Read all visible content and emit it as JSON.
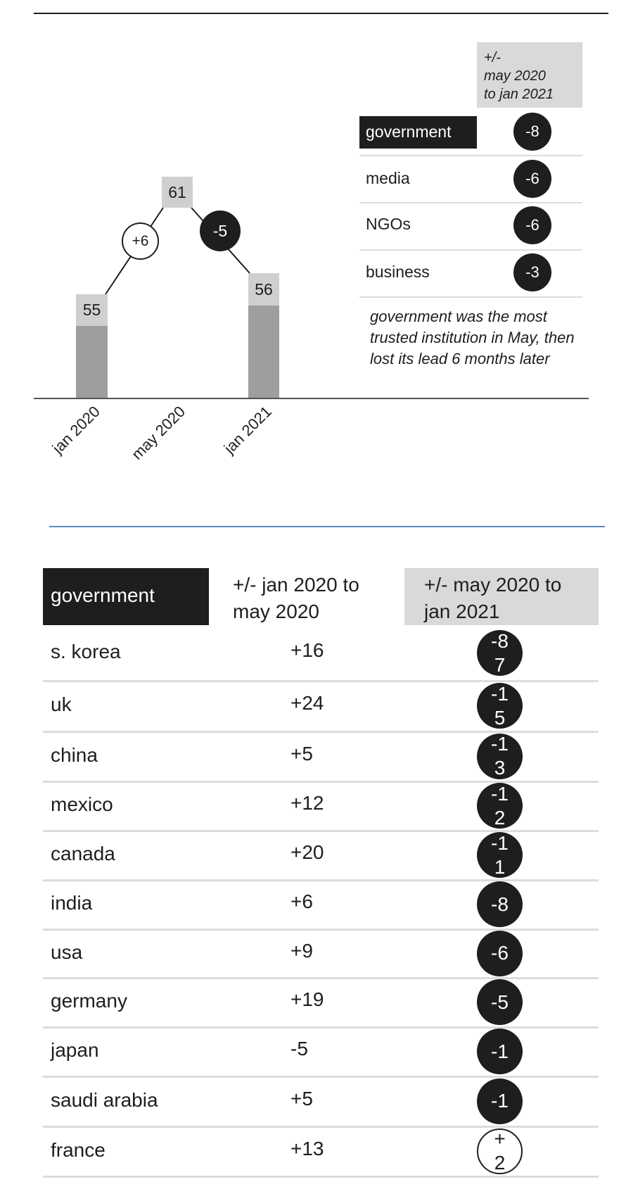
{
  "chart_data": {
    "type": "bar",
    "title": "",
    "categories": [
      "jan 2020",
      "may 2020",
      "jan 2021"
    ],
    "values": [
      55,
      61,
      56
    ],
    "shown_as_bar": [
      true,
      false,
      true
    ],
    "changes": [
      {
        "from": "jan 2020",
        "to": "may 2020",
        "label": "+6",
        "value": 6
      },
      {
        "from": "may 2020",
        "to": "jan 2021",
        "label": "-5",
        "value": -5
      }
    ],
    "value_labels": [
      "55",
      "61",
      "56"
    ],
    "ylim": [
      0,
      70
    ],
    "grid": false
  },
  "institutions": {
    "header": "+/-\nmay 2020\nto jan 2021",
    "header_lines": [
      "+/-",
      "may 2020",
      "to jan 2021"
    ],
    "rows": [
      {
        "name": "government",
        "change": "-8",
        "highlight": true
      },
      {
        "name": "media",
        "change": "-6"
      },
      {
        "name": "NGOs",
        "change": "-6"
      },
      {
        "name": "business",
        "change": "-3"
      }
    ],
    "note": "government was the most trusted institution in May, then lost its lead 6 months later"
  },
  "country_table": {
    "headers": [
      "government",
      "+/- jan 2020 to may 2020",
      "+/- may 2020 to jan 2021"
    ],
    "rows": [
      {
        "country": "s. korea",
        "jan_may": "+16",
        "may_jan": "-87"
      },
      {
        "country": "uk",
        "jan_may": "+24",
        "may_jan": "-15"
      },
      {
        "country": "china",
        "jan_may": "+5",
        "may_jan": "-13"
      },
      {
        "country": "mexico",
        "jan_may": "+12",
        "may_jan": "-12"
      },
      {
        "country": "canada",
        "jan_may": "+20",
        "may_jan": "-11"
      },
      {
        "country": "india",
        "jan_may": "+6",
        "may_jan": "-8"
      },
      {
        "country": "usa",
        "jan_may": "+9",
        "may_jan": "-6"
      },
      {
        "country": "germany",
        "jan_may": "+19",
        "may_jan": "-5"
      },
      {
        "country": "japan",
        "jan_may": "-5",
        "may_jan": "-1"
      },
      {
        "country": "saudi arabia",
        "jan_may": "+5",
        "may_jan": "-1"
      },
      {
        "country": "france",
        "jan_may": "+13",
        "may_jan": "+2"
      }
    ]
  },
  "colors": {
    "dark": "#1e1e1e",
    "label_grey": "#cfcfcf",
    "bar_grey": "#9e9e9e",
    "divider": "#dcdcdc",
    "accent_line": "#5b8ac6"
  }
}
